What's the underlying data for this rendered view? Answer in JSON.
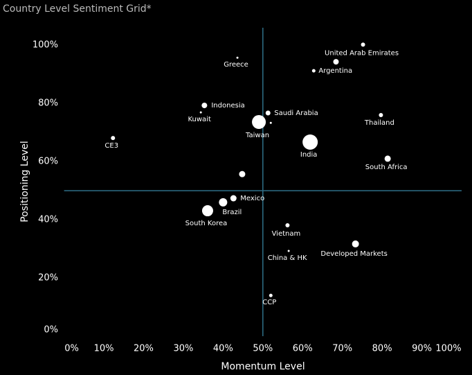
{
  "chart_data": {
    "type": "scatter",
    "title": "Country Level Sentiment Grid*",
    "x_label": "Momentum Level",
    "y_label": "Positioning Level",
    "categories": [
      "United Arab Emirates",
      "Greece",
      "Argentina",
      null,
      "Indonesia",
      "Kuwait",
      "Saudi Arabia",
      "Taiwan",
      null,
      "Thailand",
      "CE3",
      "India",
      "South Africa",
      null,
      "Mexico",
      "Brazil",
      "South Korea",
      "Vietnam",
      "Developed Markets",
      "China & HK",
      "CCP"
    ],
    "x": [
      75.2,
      43.6,
      62.8,
      68.4,
      35.3,
      34.4,
      51.3,
      49.0,
      52.0,
      79.7,
      12.3,
      61.9,
      81.4,
      44.8,
      42.6,
      40.0,
      36.1,
      56.2,
      73.3,
      56.5,
      52.0
    ],
    "values": [
      100.2,
      95.7,
      91.2,
      94.3,
      79.3,
      76.9,
      76.7,
      73.6,
      73.3,
      76.0,
      68.1,
      66.7,
      61.0,
      55.7,
      47.4,
      46.0,
      43.1,
      38.1,
      31.7,
      29.3,
      14.0
    ],
    "sizes": [
      3,
      1.5,
      2.5,
      4,
      4,
      1.5,
      3.5,
      10,
      1.5,
      3,
      3,
      11,
      4.5,
      4.5,
      4.5,
      6,
      8,
      3,
      5,
      1.5,
      2.5
    ],
    "color": "#ffffff",
    "reference_lines": {
      "x": 50,
      "y": 50,
      "color": "#2f6f88"
    },
    "xlim": [
      0,
      100
    ],
    "ylim": [
      0,
      106
    ],
    "xticks": [
      {
        "value": 0,
        "label": "0%"
      },
      {
        "value": 10,
        "label": "10%"
      },
      {
        "value": 20,
        "label": "20%"
      },
      {
        "value": 30,
        "label": "30%"
      },
      {
        "value": 40,
        "label": "40%"
      },
      {
        "value": 50,
        "label": "50%"
      },
      {
        "value": 60,
        "label": "60%"
      },
      {
        "value": 70,
        "label": "70%"
      },
      {
        "value": 80,
        "label": "80%"
      },
      {
        "value": 90,
        "label": "90%"
      },
      {
        "value": 100,
        "label": "100%"
      }
    ],
    "yticks": [
      {
        "value": 0,
        "label": "0%"
      },
      {
        "value": 20,
        "label": "20%"
      },
      {
        "value": 40,
        "label": "40%"
      },
      {
        "value": 60,
        "label": "60%"
      },
      {
        "value": 80,
        "label": "80%"
      },
      {
        "value": 100,
        "label": "100%"
      }
    ]
  }
}
